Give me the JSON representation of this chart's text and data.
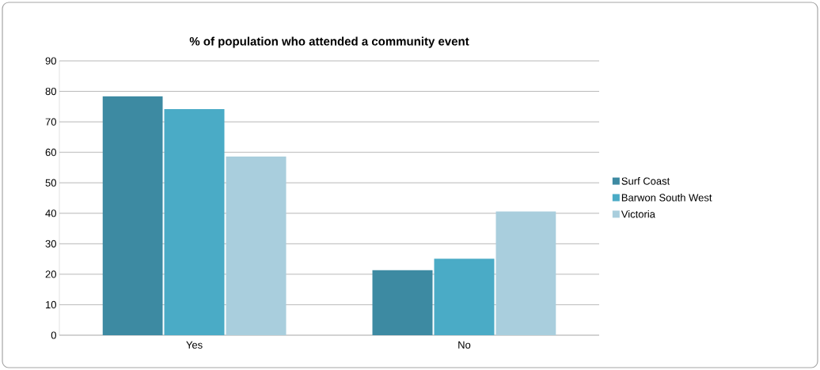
{
  "chart_data": {
    "type": "bar",
    "title": "% of population who attended a community event",
    "categories": [
      "Yes",
      "No"
    ],
    "series": [
      {
        "name": "Surf Coast",
        "color": "#3d8aa2",
        "values": [
          78.4,
          21.3
        ]
      },
      {
        "name": "Barwon South West",
        "color": "#4aabc6",
        "values": [
          74.2,
          25.1
        ]
      },
      {
        "name": "Victoria",
        "color": "#a9cedd",
        "values": [
          58.6,
          40.6
        ]
      }
    ],
    "ylim": [
      0,
      90
    ],
    "yticks": [
      0,
      10,
      20,
      30,
      40,
      50,
      60,
      70,
      80,
      90
    ],
    "grid": "y",
    "legend": "right"
  }
}
